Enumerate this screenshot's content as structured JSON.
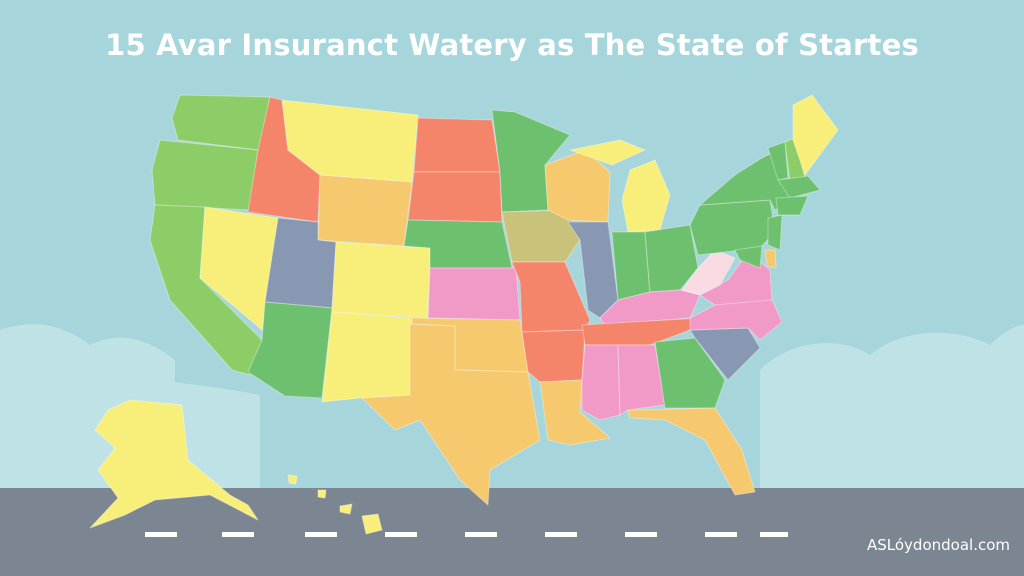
{
  "header": {
    "title": "15 Avar Insuranct Watery as The State of Startes"
  },
  "footer": {
    "watermark": "ASLóydondoal.com"
  },
  "colors": {
    "sky": "#a6d5dc",
    "cloud": "#bfe2e6",
    "road": "#7c8592",
    "lane_marking": "#ffffff",
    "green": "#8ccd68",
    "mid_green": "#6cc06e",
    "orange": "#f5856a",
    "yellow": "#f7ef7a",
    "tan": "#f6c96e",
    "slate": "#8898b2",
    "pink": "#f19ac8",
    "light_pink": "#fadbe4",
    "olive": "#c9c27a"
  },
  "map": {
    "region": "United States",
    "regions": [
      "washington",
      "oregon",
      "california",
      "idaho",
      "nevada",
      "montana",
      "wyoming",
      "utah",
      "arizona",
      "colorado",
      "new-mexico",
      "north-dakota",
      "south-dakota",
      "nebraska",
      "kansas",
      "oklahoma",
      "texas",
      "minnesota",
      "iowa",
      "missouri",
      "arkansas",
      "louisiana",
      "wisconsin",
      "illinois",
      "michigan",
      "indiana",
      "ohio",
      "kentucky",
      "tennessee",
      "mississippi",
      "alabama",
      "georgia",
      "florida",
      "south-carolina",
      "north-carolina",
      "virginia",
      "west-virginia",
      "pennsylvania",
      "new-york",
      "vermont",
      "new-hampshire",
      "maine",
      "massachusetts",
      "connecticut",
      "new-jersey",
      "delaware",
      "maryland",
      "alaska",
      "hawaii"
    ]
  }
}
